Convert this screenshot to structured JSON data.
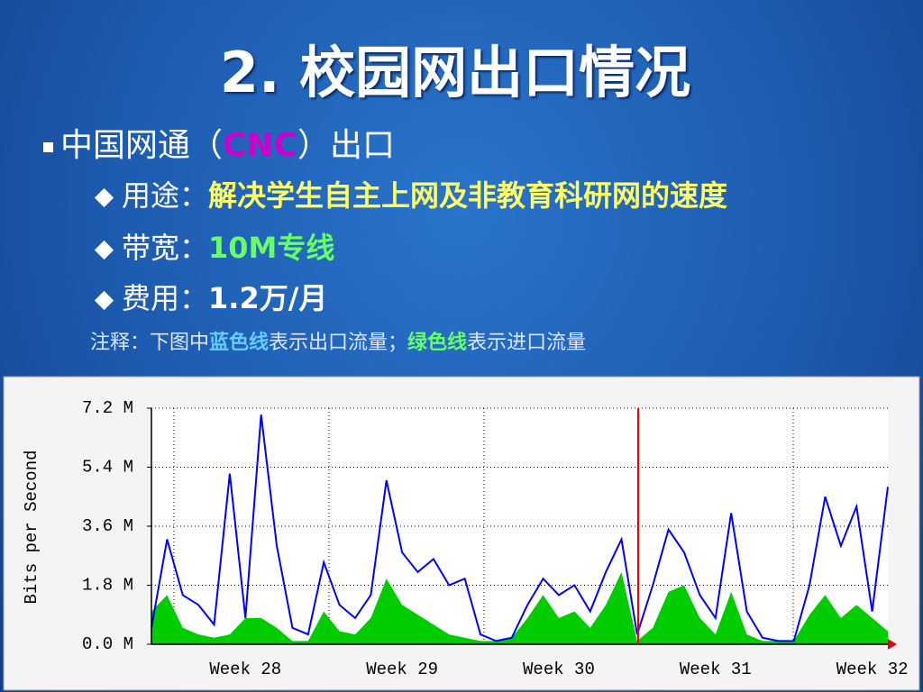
{
  "slide": {
    "title": "2. 校园网出口情况",
    "bullet": {
      "pre": "中国网通（",
      "highlight": "CNC",
      "post": "）出口"
    },
    "items": [
      {
        "label": "用途：",
        "text": "解决学生自主上网及非教育科研网的速度"
      },
      {
        "label": "带宽：",
        "text": "10M专线"
      },
      {
        "label": "费用：",
        "text": "1.2万/月"
      }
    ],
    "note": [
      "注释：下图中",
      "蓝色线",
      "表示出口流量；",
      "绿色线",
      "表示进口流量"
    ]
  },
  "chart_data": {
    "type": "line",
    "ylabel": "Bits per Second",
    "ylim": [
      0,
      7.2
    ],
    "yticks": [
      {
        "value": 0,
        "label": "0.0 M"
      },
      {
        "value": 1.8,
        "label": "1.8 M"
      },
      {
        "value": 3.6,
        "label": "3.6 M"
      },
      {
        "value": 5.4,
        "label": "5.4 M"
      },
      {
        "value": 7.2,
        "label": "7.2 M"
      }
    ],
    "grid": true,
    "categories": [
      null,
      null,
      null,
      null,
      null,
      null,
      "Week 28",
      null,
      null,
      null,
      null,
      null,
      null,
      null,
      null,
      null,
      "Week 29",
      null,
      null,
      null,
      null,
      null,
      null,
      null,
      null,
      null,
      "Week 30",
      null,
      null,
      null,
      null,
      null,
      null,
      null,
      null,
      null,
      "Week 31",
      null,
      null,
      null,
      null,
      null,
      null,
      null,
      null,
      null,
      "Week 32",
      null
    ],
    "series": [
      {
        "name": "in",
        "color": "#00cc00",
        "fill": true,
        "values": [
          1.0,
          1.5,
          0.5,
          0.3,
          0.2,
          0.3,
          0.8,
          0.8,
          0.5,
          0.1,
          0.1,
          1.0,
          0.4,
          0.3,
          0.8,
          2.0,
          1.2,
          0.9,
          0.6,
          0.3,
          0.2,
          0.1,
          0.1,
          0.2,
          0.8,
          1.5,
          0.8,
          1.0,
          0.5,
          1.2,
          2.2,
          0.1,
          0.5,
          1.6,
          1.8,
          0.8,
          0.3,
          1.6,
          0.3,
          0.1,
          0.1,
          0.1,
          0.9,
          1.5,
          0.8,
          1.2,
          0.8,
          0.4
        ]
      },
      {
        "name": "out",
        "color": "#0000ff",
        "fill": false,
        "values": [
          0.5,
          3.2,
          1.5,
          1.2,
          0.6,
          5.2,
          0.8,
          7.0,
          3.0,
          0.5,
          0.3,
          2.5,
          1.2,
          0.8,
          1.5,
          5.0,
          2.8,
          2.2,
          2.6,
          1.8,
          2.0,
          0.3,
          0.1,
          0.2,
          1.2,
          2.0,
          1.5,
          1.8,
          1.0,
          2.2,
          3.2,
          0.3,
          1.8,
          3.5,
          2.8,
          1.5,
          0.8,
          4.0,
          1.0,
          0.2,
          0.1,
          0.1,
          1.8,
          4.5,
          3.0,
          4.2,
          1.0,
          4.8
        ]
      }
    ]
  }
}
